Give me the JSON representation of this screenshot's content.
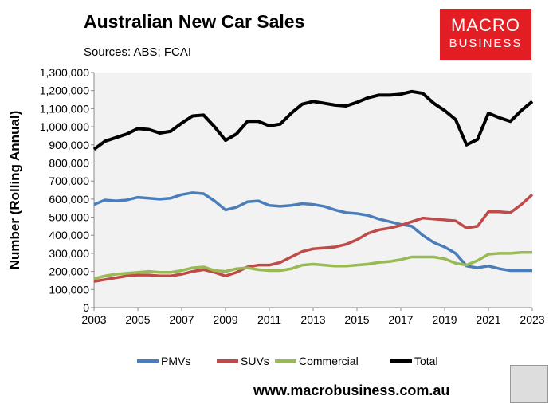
{
  "header": {
    "title": "Australian New Car Sales",
    "sources": "Sources: ABS; FCAI"
  },
  "logo": {
    "line1": "MACRO",
    "line2": "BUSINESS",
    "color": "#e21d24"
  },
  "footer": {
    "url": "www.macrobusiness.com.au"
  },
  "chart_data": {
    "type": "line",
    "title": "Australian New Car Sales",
    "xlabel": "",
    "ylabel": "Number (Rolling Annual)",
    "xlim": [
      2003,
      2023
    ],
    "ylim": [
      0,
      1300000
    ],
    "xticks": [
      "2003",
      "2005",
      "2007",
      "2009",
      "2011",
      "2013",
      "2015",
      "2017",
      "2019",
      "2021",
      "2023"
    ],
    "yticks": [
      "0",
      "100,000",
      "200,000",
      "300,000",
      "400,000",
      "500,000",
      "600,000",
      "700,000",
      "800,000",
      "900,000",
      "1,000,000",
      "1,100,000",
      "1,200,000",
      "1,300,000"
    ],
    "legend_position": "bottom",
    "x_start": 2003,
    "x_step": 0.5,
    "series": [
      {
        "name": "PMVs",
        "color": "#4a7ebb",
        "values": [
          570,
          595,
          590,
          595,
          610,
          605,
          600,
          605,
          625,
          635,
          630,
          590,
          540,
          555,
          585,
          590,
          565,
          560,
          565,
          575,
          570,
          560,
          540,
          525,
          520,
          510,
          490,
          475,
          460,
          450,
          400,
          360,
          335,
          300,
          230,
          220,
          230,
          215,
          205,
          205,
          205
        ]
      },
      {
        "name": "SUVs",
        "color": "#be4b48",
        "values": [
          145,
          155,
          165,
          175,
          180,
          180,
          175,
          175,
          185,
          200,
          210,
          195,
          175,
          195,
          225,
          235,
          235,
          250,
          280,
          310,
          325,
          330,
          335,
          350,
          375,
          410,
          430,
          440,
          455,
          475,
          495,
          490,
          485,
          480,
          440,
          450,
          530,
          530,
          525,
          570,
          625
        ]
      },
      {
        "name": "Commercial",
        "color": "#98b954",
        "values": [
          160,
          175,
          185,
          190,
          195,
          200,
          195,
          195,
          205,
          220,
          225,
          205,
          200,
          215,
          220,
          210,
          205,
          205,
          215,
          235,
          240,
          235,
          230,
          230,
          235,
          240,
          250,
          255,
          265,
          280,
          280,
          280,
          270,
          245,
          235,
          260,
          295,
          300,
          300,
          305,
          305
        ]
      },
      {
        "name": "Total",
        "color": "#000000",
        "values": [
          875,
          920,
          940,
          960,
          990,
          985,
          965,
          975,
          1020,
          1060,
          1065,
          1000,
          925,
          960,
          1030,
          1030,
          1005,
          1015,
          1075,
          1125,
          1140,
          1130,
          1120,
          1115,
          1135,
          1160,
          1175,
          1175,
          1180,
          1195,
          1185,
          1130,
          1090,
          1040,
          900,
          930,
          1075,
          1050,
          1030,
          1090,
          1140
        ]
      }
    ],
    "value_unit": "thousands"
  }
}
